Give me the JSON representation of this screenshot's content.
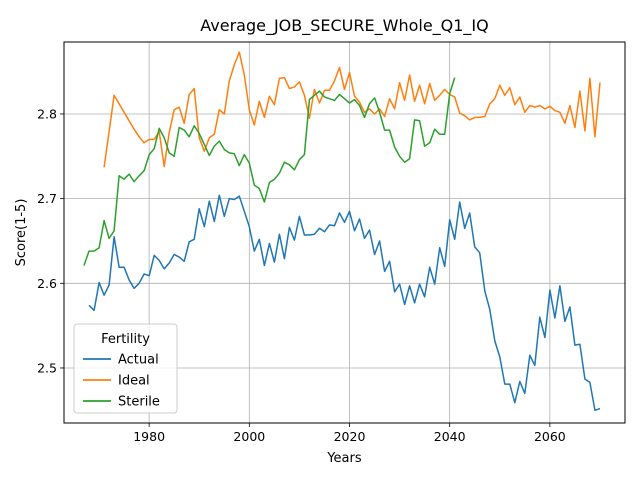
{
  "chart_data": {
    "type": "line",
    "title": "Average_JOB_SECURE_Whole_Q1_IQ",
    "xlabel": "Years",
    "ylabel": "Score(1-5)",
    "xlim": [
      1963,
      2075
    ],
    "ylim": [
      2.435,
      2.885
    ],
    "xticks": [
      1980,
      2000,
      2020,
      2040,
      2060
    ],
    "yticks": [
      2.5,
      2.6,
      2.7,
      2.8
    ],
    "grid": true,
    "legend": {
      "title": "Fertility",
      "placement": "lower-left"
    },
    "series": [
      {
        "name": "Actual",
        "color": "#1f77b4",
        "x": [
          1968,
          1969,
          1970,
          1971,
          1972,
          1973,
          1974,
          1975,
          1976,
          1977,
          1978,
          1979,
          1980,
          1981,
          1982,
          1983,
          1984,
          1985,
          1986,
          1987,
          1988,
          1989,
          1990,
          1991,
          1992,
          1993,
          1994,
          1995,
          1996,
          1997,
          1998,
          1999,
          2000,
          2001,
          2002,
          2003,
          2004,
          2005,
          2006,
          2007,
          2008,
          2009,
          2010,
          2011,
          2012,
          2013,
          2014,
          2015,
          2016,
          2017,
          2018,
          2019,
          2020,
          2021,
          2022,
          2023,
          2024,
          2025,
          2026,
          2027,
          2028,
          2029,
          2030,
          2031,
          2032,
          2033,
          2034,
          2035,
          2036,
          2037,
          2038,
          2039,
          2040,
          2041,
          2042,
          2043,
          2044,
          2045,
          2046,
          2047,
          2048,
          2049,
          2050,
          2051,
          2052,
          2053,
          2054,
          2055,
          2056,
          2057,
          2058,
          2059,
          2060,
          2061,
          2062,
          2063,
          2064,
          2065,
          2066,
          2067,
          2068,
          2069,
          2070
        ],
        "values": [
          2.574,
          2.568,
          2.601,
          2.586,
          2.598,
          2.655,
          2.619,
          2.619,
          2.604,
          2.594,
          2.6,
          2.611,
          2.609,
          2.633,
          2.627,
          2.617,
          2.624,
          2.634,
          2.631,
          2.626,
          2.649,
          2.652,
          2.688,
          2.667,
          2.697,
          2.673,
          2.704,
          2.679,
          2.7,
          2.699,
          2.703,
          2.685,
          2.667,
          2.638,
          2.652,
          2.621,
          2.647,
          2.625,
          2.658,
          2.629,
          2.666,
          2.651,
          2.679,
          2.657,
          2.657,
          2.658,
          2.665,
          2.661,
          2.669,
          2.668,
          2.683,
          2.672,
          2.685,
          2.662,
          2.676,
          2.653,
          2.663,
          2.634,
          2.65,
          2.614,
          2.626,
          2.59,
          2.599,
          2.575,
          2.597,
          2.577,
          2.599,
          2.584,
          2.619,
          2.599,
          2.642,
          2.62,
          2.675,
          2.652,
          2.696,
          2.665,
          2.683,
          2.643,
          2.636,
          2.591,
          2.569,
          2.532,
          2.513,
          2.481,
          2.481,
          2.459,
          2.484,
          2.47,
          2.515,
          2.503,
          2.56,
          2.536,
          2.592,
          2.559,
          2.597,
          2.555,
          2.572,
          2.527,
          2.528,
          2.487,
          2.483,
          2.45,
          2.452
        ]
      },
      {
        "name": "Ideal",
        "color": "#ff7f0e",
        "x": [
          1971,
          1972,
          1973,
          1974,
          1975,
          1976,
          1977,
          1978,
          1979,
          1980,
          1981,
          1982,
          1983,
          1984,
          1985,
          1986,
          1987,
          1988,
          1989,
          1990,
          1991,
          1992,
          1993,
          1994,
          1995,
          1996,
          1997,
          1998,
          1999,
          2000,
          2001,
          2002,
          2003,
          2004,
          2005,
          2006,
          2007,
          2008,
          2009,
          2010,
          2011,
          2012,
          2013,
          2014,
          2015,
          2016,
          2017,
          2018,
          2019,
          2020,
          2021,
          2022,
          2023,
          2024,
          2025,
          2026,
          2027,
          2028,
          2029,
          2030,
          2031,
          2032,
          2033,
          2034,
          2035,
          2036,
          2037,
          2038,
          2039,
          2040,
          2041,
          2042,
          2043,
          2044,
          2045,
          2046,
          2047,
          2048,
          2049,
          2050,
          2051,
          2052,
          2053,
          2054,
          2055,
          2056,
          2057,
          2058,
          2059,
          2060,
          2061,
          2062,
          2063,
          2064,
          2065,
          2066,
          2067,
          2068,
          2069,
          2070
        ],
        "values": [
          2.737,
          2.779,
          2.822,
          2.812,
          2.802,
          2.792,
          2.782,
          2.773,
          2.766,
          2.77,
          2.77,
          2.779,
          2.738,
          2.778,
          2.805,
          2.808,
          2.789,
          2.823,
          2.83,
          2.772,
          2.756,
          2.772,
          2.776,
          2.805,
          2.8,
          2.839,
          2.858,
          2.873,
          2.846,
          2.805,
          2.787,
          2.815,
          2.796,
          2.821,
          2.811,
          2.842,
          2.843,
          2.83,
          2.832,
          2.838,
          2.822,
          2.795,
          2.829,
          2.813,
          2.828,
          2.828,
          2.839,
          2.855,
          2.829,
          2.849,
          2.821,
          2.814,
          2.802,
          2.806,
          2.8,
          2.806,
          2.797,
          2.818,
          2.806,
          2.837,
          2.816,
          2.846,
          2.815,
          2.834,
          2.812,
          2.836,
          2.816,
          2.822,
          2.829,
          2.823,
          2.82,
          2.801,
          2.798,
          2.793,
          2.796,
          2.796,
          2.797,
          2.812,
          2.818,
          2.834,
          2.822,
          2.831,
          2.811,
          2.82,
          2.802,
          2.81,
          2.808,
          2.81,
          2.806,
          2.809,
          2.804,
          2.802,
          2.789,
          2.81,
          2.784,
          2.827,
          2.78,
          2.842,
          2.773,
          2.837
        ]
      },
      {
        "name": "Sterile",
        "color": "#2ca02c",
        "x": [
          1967,
          1968,
          1969,
          1970,
          1971,
          1972,
          1973,
          1974,
          1975,
          1976,
          1977,
          1978,
          1979,
          1980,
          1981,
          1982,
          1983,
          1984,
          1985,
          1986,
          1987,
          1988,
          1989,
          1990,
          1991,
          1992,
          1993,
          1994,
          1995,
          1996,
          1997,
          1998,
          1999,
          2000,
          2001,
          2002,
          2003,
          2004,
          2005,
          2006,
          2007,
          2008,
          2009,
          2010,
          2011,
          2012,
          2013,
          2014,
          2015,
          2016,
          2017,
          2018,
          2019,
          2020,
          2021,
          2022,
          2023,
          2024,
          2025,
          2026,
          2027,
          2028,
          2029,
          2030,
          2031,
          2032,
          2033,
          2034,
          2035,
          2036,
          2037,
          2038,
          2039,
          2040,
          2041
        ],
        "values": [
          2.621,
          2.638,
          2.638,
          2.642,
          2.674,
          2.653,
          2.662,
          2.727,
          2.723,
          2.729,
          2.72,
          2.727,
          2.733,
          2.752,
          2.759,
          2.783,
          2.772,
          2.754,
          2.75,
          2.784,
          2.781,
          2.773,
          2.786,
          2.777,
          2.764,
          2.751,
          2.762,
          2.768,
          2.758,
          2.754,
          2.753,
          2.739,
          2.752,
          2.742,
          2.716,
          2.712,
          2.696,
          2.719,
          2.723,
          2.73,
          2.743,
          2.74,
          2.734,
          2.746,
          2.752,
          2.817,
          2.822,
          2.827,
          2.82,
          2.818,
          2.816,
          2.823,
          2.818,
          2.813,
          2.817,
          2.81,
          2.796,
          2.812,
          2.819,
          2.802,
          2.781,
          2.781,
          2.761,
          2.75,
          2.743,
          2.747,
          2.793,
          2.792,
          2.762,
          2.766,
          2.782,
          2.776,
          2.776,
          2.824,
          2.843
        ]
      }
    ]
  }
}
